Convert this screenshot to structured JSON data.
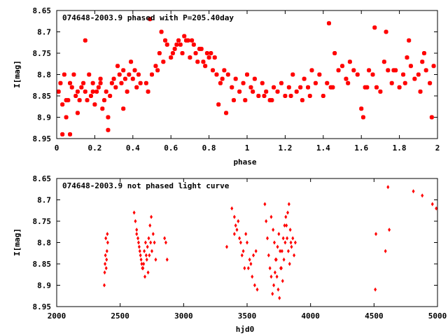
{
  "chart_data": [
    {
      "type": "scatter",
      "title": "074648-2003.9 phased with P=205.40day",
      "xlabel": "phase",
      "ylabel": "I[mag]",
      "xlim": [
        0,
        2
      ],
      "ylim": [
        8.95,
        8.65
      ],
      "y_inverted": true,
      "xticks": [
        "0",
        "0.2",
        "0.4",
        "0.6",
        "0.8",
        "1",
        "1.2",
        "1.4",
        "1.6",
        "1.8",
        "2"
      ],
      "yticks": [
        "8.65",
        "8.7",
        "8.75",
        "8.8",
        "8.85",
        "8.9",
        "8.95"
      ],
      "marker": "filled-square",
      "color": "#ff0000",
      "series": [
        {
          "x": [
            0.01,
            0.02,
            0.03,
            0.04,
            0.05,
            0.06,
            0.07,
            0.08,
            0.09,
            0.1,
            0.11,
            0.12,
            0.13,
            0.14,
            0.15,
            0.16,
            0.17,
            0.18,
            0.19,
            0.2,
            0.21,
            0.22,
            0.23,
            0.24,
            0.25,
            0.26,
            0.27,
            0.28,
            0.29,
            0.3,
            0.31,
            0.32,
            0.33,
            0.34,
            0.35,
            0.36,
            0.37,
            0.38,
            0.39,
            0.4,
            0.41,
            0.42,
            0.43,
            0.44,
            0.48,
            0.5,
            0.52,
            0.54,
            0.56,
            0.58,
            0.6,
            0.62,
            0.64,
            0.66,
            0.68,
            0.7,
            0.72,
            0.74,
            0.76,
            0.78,
            0.8,
            0.82,
            0.84,
            0.86,
            0.88,
            0.9,
            0.92,
            0.94,
            0.96,
            0.98,
            1.0,
            1.02,
            1.04,
            1.06,
            1.08,
            1.1,
            1.12,
            1.14,
            1.16,
            1.18,
            1.2,
            1.22,
            1.24,
            1.26,
            1.28,
            1.3,
            1.32,
            1.34,
            1.36,
            1.38,
            1.4,
            1.42,
            1.44,
            1.46,
            1.48,
            1.5,
            1.52,
            1.54,
            1.56,
            1.58,
            1.6,
            1.62,
            1.64,
            1.66,
            1.68,
            1.7,
            1.72,
            1.74,
            1.76,
            1.78,
            1.8,
            1.82,
            1.84,
            1.86,
            1.88,
            1.9,
            1.92,
            1.94,
            1.96,
            1.98,
            0.03,
            0.07,
            0.15,
            0.27,
            0.49,
            0.55,
            0.57,
            0.63,
            0.67,
            0.69,
            0.71,
            0.75,
            0.79,
            0.81,
            0.85,
            0.89,
            0.99,
            1.09,
            1.29,
            1.43,
            1.61,
            1.67,
            1.73,
            1.85,
            1.93,
            1.97,
            0.05,
            0.11,
            0.19,
            0.23,
            0.35,
            0.47,
            0.53,
            0.61,
            0.65,
            0.73,
            0.77,
            0.83,
            0.87,
            0.93,
            1.03,
            1.13,
            1.23,
            1.33,
            1.45,
            1.53,
            1.63,
            1.77,
            1.83,
            1.91
          ],
          "y": [
            8.84,
            8.82,
            8.87,
            8.8,
            8.9,
            8.86,
            8.82,
            8.83,
            8.8,
            8.85,
            8.84,
            8.86,
            8.83,
            8.82,
            8.84,
            8.86,
            8.8,
            8.85,
            8.82,
            8.87,
            8.84,
            8.83,
            8.81,
            8.88,
            8.86,
            8.84,
            8.9,
            8.85,
            8.82,
            8.81,
            8.83,
            8.78,
            8.8,
            8.82,
            8.79,
            8.81,
            8.84,
            8.8,
            8.77,
            8.81,
            8.79,
            8.83,
            8.8,
            8.82,
            8.84,
            8.8,
            8.78,
            8.75,
            8.77,
            8.73,
            8.76,
            8.74,
            8.72,
            8.75,
            8.72,
            8.76,
            8.73,
            8.77,
            8.74,
            8.78,
            8.76,
            8.79,
            8.8,
            8.82,
            8.79,
            8.8,
            8.83,
            8.81,
            8.84,
            8.82,
            8.8,
            8.83,
            8.81,
            8.85,
            8.82,
            8.84,
            8.86,
            8.83,
            8.84,
            8.82,
            8.85,
            8.83,
            8.8,
            8.84,
            8.83,
            8.81,
            8.83,
            8.79,
            8.82,
            8.8,
            8.85,
            8.82,
            8.83,
            8.75,
            8.79,
            8.78,
            8.81,
            8.77,
            8.79,
            8.8,
            8.88,
            8.83,
            8.79,
            8.8,
            8.83,
            8.84,
            8.77,
            8.79,
            8.82,
            8.79,
            8.83,
            8.8,
            8.76,
            8.78,
            8.81,
            8.8,
            8.77,
            8.79,
            8.82,
            8.78,
            8.94,
            8.94,
            8.72,
            8.93,
            8.67,
            8.7,
            8.72,
            8.73,
            8.71,
            8.72,
            8.72,
            8.74,
            8.75,
            8.75,
            8.87,
            8.89,
            8.86,
            8.85,
            8.86,
            8.68,
            8.9,
            8.69,
            8.7,
            8.72,
            8.75,
            8.9,
            8.86,
            8.89,
            8.84,
            8.82,
            8.88,
            8.82,
            8.79,
            8.75,
            8.73,
            8.75,
            8.77,
            8.76,
            8.81,
            8.86,
            8.84,
            8.86,
            8.85,
            8.85,
            8.83,
            8.82,
            8.83,
            8.79,
            8.82,
            8.84
          ]
        }
      ]
    },
    {
      "type": "scatter",
      "title": "074648-2003.9 not phased light curve",
      "xlabel": "hjd0",
      "ylabel": "I[mag]",
      "xlim": [
        2000,
        5000
      ],
      "ylim": [
        8.95,
        8.65
      ],
      "y_inverted": true,
      "xticks": [
        "2000",
        "2500",
        "3000",
        "3500",
        "4000",
        "4500",
        "5000"
      ],
      "yticks": [
        "8.65",
        "8.7",
        "8.75",
        "8.8",
        "8.85",
        "8.9",
        "8.95"
      ],
      "marker": "filled-diamond",
      "color": "#ff0000",
      "series": [
        {
          "x": [
            2375,
            2378,
            2381,
            2384,
            2387,
            2390,
            2393,
            2396,
            2399,
            2402,
            2610,
            2620,
            2630,
            2640,
            2650,
            2660,
            2670,
            2680,
            2690,
            2700,
            2710,
            2720,
            2730,
            2740,
            2750,
            2630,
            2645,
            2655,
            2665,
            2675,
            2685,
            2695,
            2705,
            2715,
            2725,
            2735,
            2745,
            2760,
            2770,
            2780,
            2850,
            2860,
            2870,
            3340,
            3380,
            3400,
            3420,
            3440,
            3460,
            3480,
            3500,
            3520,
            3540,
            3560,
            3580,
            3400,
            3410,
            3430,
            3450,
            3470,
            3490,
            3510,
            3530,
            3550,
            3570,
            3640,
            3650,
            3660,
            3670,
            3680,
            3690,
            3700,
            3710,
            3720,
            3730,
            3740,
            3750,
            3760,
            3770,
            3780,
            3790,
            3800,
            3810,
            3820,
            3830,
            3840,
            3850,
            3860,
            3870,
            3880,
            3690,
            3705,
            3715,
            3725,
            3735,
            3745,
            3755,
            3765,
            3775,
            3785,
            3795,
            3805,
            3815,
            3825,
            3835,
            3845,
            4510,
            4515,
            4590,
            4610,
            4620,
            4810,
            4880,
            4960,
            4990
          ],
          "y": [
            8.9,
            8.87,
            8.85,
            8.83,
            8.79,
            8.86,
            8.84,
            8.82,
            8.78,
            8.8,
            8.73,
            8.75,
            8.77,
            8.79,
            8.81,
            8.83,
            8.85,
            8.86,
            8.82,
            8.8,
            8.84,
            8.87,
            8.83,
            8.8,
            8.82,
            8.78,
            8.8,
            8.82,
            8.84,
            8.86,
            8.85,
            8.88,
            8.83,
            8.81,
            8.79,
            8.76,
            8.74,
            8.78,
            8.8,
            8.84,
            8.79,
            8.8,
            8.84,
            8.81,
            8.72,
            8.74,
            8.77,
            8.79,
            8.83,
            8.86,
            8.8,
            8.84,
            8.88,
            8.9,
            8.91,
            8.78,
            8.76,
            8.75,
            8.8,
            8.82,
            8.78,
            8.86,
            8.85,
            8.83,
            8.82,
            8.71,
            8.75,
            8.79,
            8.83,
            8.86,
            8.88,
            8.92,
            8.9,
            8.87,
            8.84,
            8.81,
            8.78,
            8.82,
            8.86,
            8.89,
            8.84,
            8.8,
            8.76,
            8.73,
            8.71,
            8.77,
            8.81,
            8.79,
            8.83,
            8.8,
            8.74,
            8.77,
            8.8,
            8.84,
            8.88,
            8.91,
            8.93,
            8.86,
            8.82,
            8.79,
            8.76,
            8.74,
            8.79,
            8.82,
            8.85,
            8.8,
            8.91,
            8.78,
            8.82,
            8.67,
            8.77,
            8.68,
            8.69,
            8.71,
            8.72
          ]
        }
      ]
    }
  ]
}
